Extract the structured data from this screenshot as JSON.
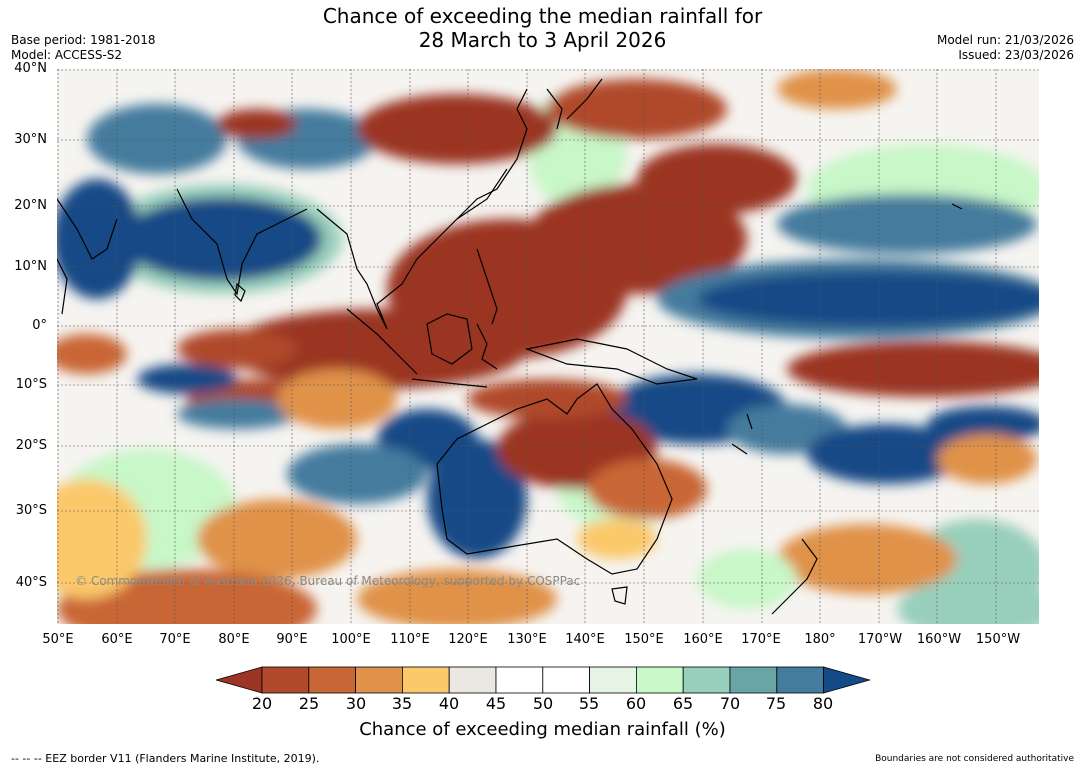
{
  "title": {
    "line1": "Chance of exceeding the median rainfall for",
    "line2": "28 March to 3 April 2026"
  },
  "meta": {
    "base_period": "Base period: 1981-2018",
    "model": "Model: ACCESS-S2",
    "model_run": "Model run: 21/03/2026",
    "issued": "Issued: 23/03/2026"
  },
  "map": {
    "lat_labels": [
      "40°N",
      "30°N",
      "20°N",
      "10°N",
      "0°",
      "10°S",
      "20°S",
      "30°S",
      "40°S"
    ],
    "lon_labels": [
      "50°E",
      "60°E",
      "70°E",
      "80°E",
      "90°E",
      "100°E",
      "110°E",
      "120°E",
      "130°E",
      "140°E",
      "150°E",
      "160°E",
      "170°E",
      "180°",
      "170°W",
      "160°W",
      "150°W"
    ],
    "copyright": "© Commonwealth of Australia 2026, Bureau of Meteorology, supported by COSPPac"
  },
  "colorbar": {
    "ticks": [
      "20",
      "25",
      "30",
      "35",
      "40",
      "45",
      "50",
      "55",
      "60",
      "65",
      "70",
      "75",
      "80"
    ],
    "colors": [
      "#9b3424",
      "#b04a2a",
      "#c96636",
      "#e0924a",
      "#fbc86a",
      "#ebe8e3",
      "#ffffff",
      "#ffffff",
      "#e6f4e6",
      "#c8f7c8",
      "#98cfbc",
      "#6aa5a5",
      "#447c9e",
      "#144a86"
    ],
    "label": "Chance of exceeding median rainfall (%)"
  },
  "footer": {
    "left": "--  --  -- EEZ border V11 (Flanders Marine Institute, 2019).",
    "right": "Boundaries are not considered authoritative"
  }
}
